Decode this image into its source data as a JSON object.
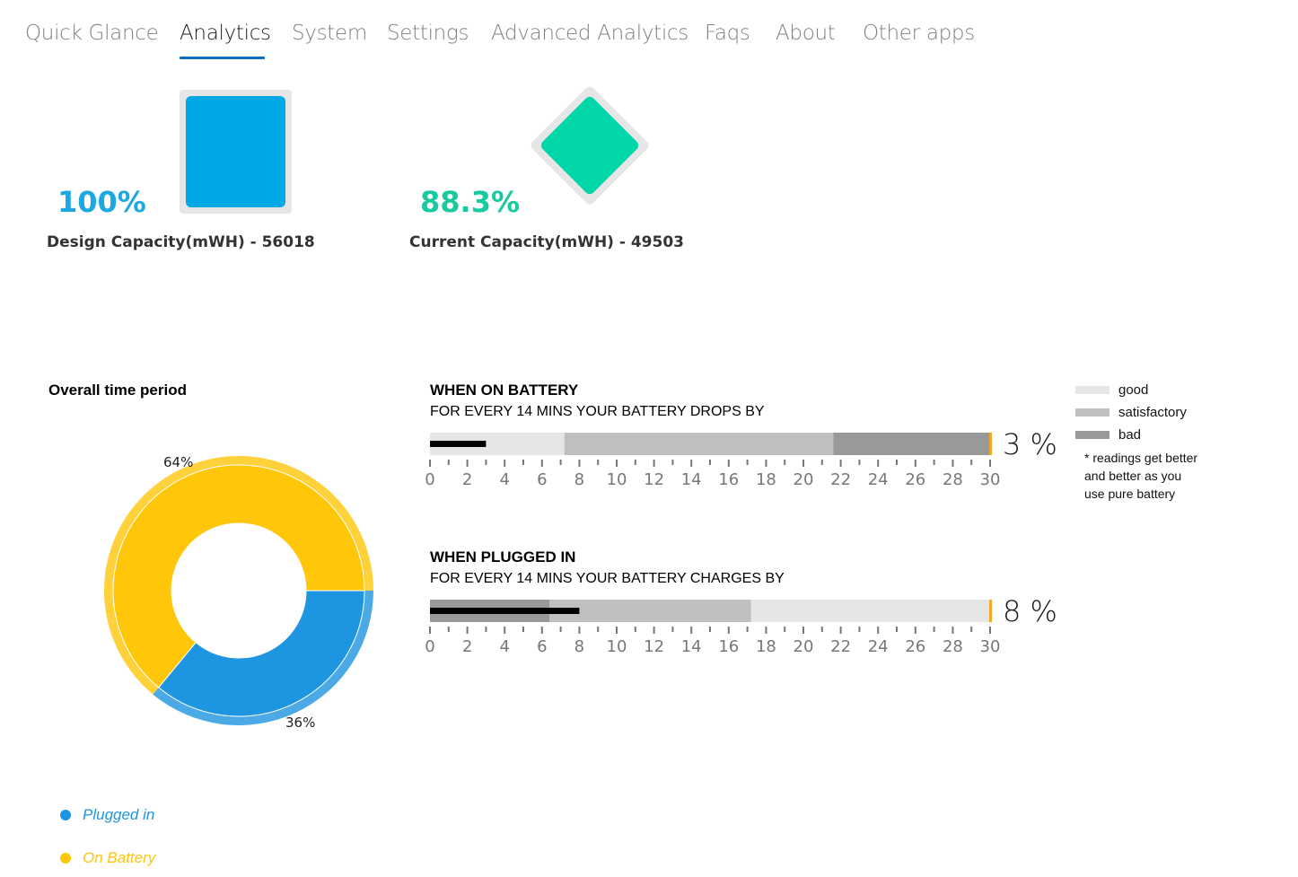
{
  "tabs": [
    {
      "label": "Quick Glance",
      "active": false
    },
    {
      "label": "Analytics",
      "active": true
    },
    {
      "label": "System",
      "active": false
    },
    {
      "label": "Settings",
      "active": false
    },
    {
      "label": "Advanced Analytics",
      "active": false
    },
    {
      "label": "Faqs",
      "active": false
    },
    {
      "label": "About",
      "active": false
    },
    {
      "label": "Other apps",
      "active": false
    }
  ],
  "capacity": {
    "design": {
      "percent": "100%",
      "label": "Design Capacity(mWH) - 56018",
      "color": "#00a8e6"
    },
    "current": {
      "percent": "88.3%",
      "label": "Current Capacity(mWH) - 49503",
      "color": "#00d6a8"
    }
  },
  "donut": {
    "title": "Overall time period",
    "slices": [
      {
        "label": "On Battery",
        "value": 64,
        "text": "64%",
        "color": "#ffc60a"
      },
      {
        "label": "Plugged in",
        "value": 36,
        "text": "36%",
        "color": "#1e95e0"
      }
    ],
    "legend": [
      {
        "label": "Plugged in",
        "color": "#1e95e0"
      },
      {
        "label": "On Battery",
        "color": "#ffc60a"
      }
    ]
  },
  "battery_gauge": {
    "title": "WHEN ON BATTERY",
    "subtitle": "FOR EVERY 14 MINS YOUR BATTERY DROPS BY",
    "value": 3,
    "value_text": "3 %",
    "ranges": [
      {
        "band": "good",
        "from": 0,
        "to": 7.2
      },
      {
        "band": "satisfactory",
        "from": 7.2,
        "to": 21.6
      },
      {
        "band": "bad",
        "from": 21.6,
        "to": 30
      }
    ],
    "target": 30
  },
  "plugged_gauge": {
    "title": "WHEN PLUGGED IN",
    "subtitle": "FOR EVERY 14 MINS YOUR BATTERY CHARGES BY",
    "value": 8,
    "value_text": "8 %",
    "ranges": [
      {
        "band": "bad",
        "from": 0,
        "to": 6.4
      },
      {
        "band": "satisfactory",
        "from": 6.4,
        "to": 17.2
      },
      {
        "band": "good",
        "from": 17.2,
        "to": 30
      }
    ],
    "target": 30
  },
  "axis": {
    "min": 0,
    "max": 30,
    "major_step": 2,
    "minor_step": 1,
    "labels": [
      "0",
      "2",
      "4",
      "6",
      "8",
      "10",
      "12",
      "14",
      "16",
      "18",
      "20",
      "22",
      "24",
      "26",
      "28",
      "30"
    ]
  },
  "band_colors": {
    "good": "#e6e6e6",
    "satisfactory": "#bfbfbf",
    "bad": "#999999",
    "marker": "#f5a623",
    "value_bar": "#000000"
  },
  "legend": {
    "items": [
      {
        "band": "good",
        "label": "good"
      },
      {
        "band": "satisfactory",
        "label": "satisfactory"
      },
      {
        "band": "bad",
        "label": "bad"
      }
    ],
    "note": "* readings get better and better as you use pure battery"
  }
}
